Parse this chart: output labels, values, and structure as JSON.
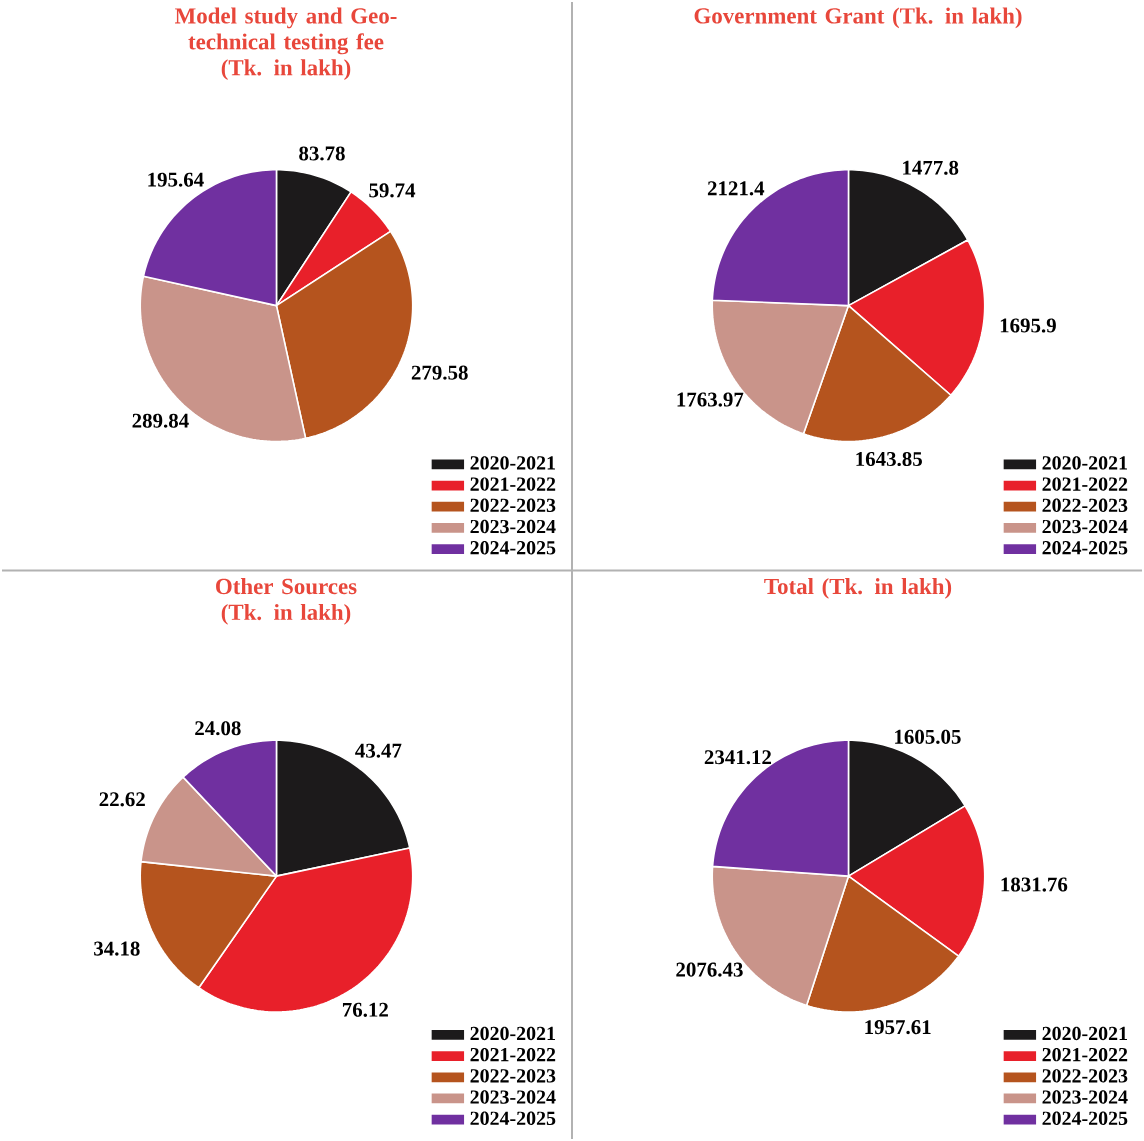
{
  "chart_data": [
    {
      "type": "pie",
      "title": "Model study and Geo-technical testing fee",
      "subtitle": "(Tk. in lakh)",
      "categories": [
        "2020-2021",
        "2021-2022",
        "2022-2023",
        "2023-2024",
        "2024-2025"
      ],
      "values": [
        83.78,
        59.74,
        279.58,
        289.84,
        195.64
      ],
      "colors": [
        "#1c1a1b",
        "#e8202a",
        "#b5541e",
        "#c9948a",
        "#7030a0"
      ],
      "data_labels": true,
      "legend": "bottom right"
    },
    {
      "type": "pie",
      "title": "Government Grant (Tk. in lakh)",
      "categories": [
        "2020-2021",
        "2021-2022",
        "2022-2023",
        "2023-2024",
        "2024-2025"
      ],
      "values": [
        1477.8,
        1695.9,
        1643.85,
        1763.97,
        2121.4
      ],
      "colors": [
        "#1c1a1b",
        "#e8202a",
        "#b5541e",
        "#c9948a",
        "#7030a0"
      ],
      "data_labels": true,
      "legend": "bottom right"
    },
    {
      "type": "pie",
      "title": "Other Sources",
      "subtitle": "(Tk. in lakh)",
      "categories": [
        "2020-2021",
        "2021-2022",
        "2022-2023",
        "2023-2024",
        "2024-2025"
      ],
      "values": [
        43.47,
        76.12,
        34.18,
        22.62,
        24.08
      ],
      "colors": [
        "#1c1a1b",
        "#e8202a",
        "#b5541e",
        "#c9948a",
        "#7030a0"
      ],
      "data_labels": true,
      "legend": "bottom right"
    },
    {
      "type": "pie",
      "title": "Total (Tk. in lakh)",
      "categories": [
        "2020-2021",
        "2021-2022",
        "2022-2023",
        "2023-2024",
        "2024-2025"
      ],
      "values": [
        1605.05,
        1831.76,
        1957.61,
        2076.43,
        2341.12
      ],
      "colors": [
        "#1c1a1b",
        "#e8202a",
        "#b5541e",
        "#c9948a",
        "#7030a0"
      ],
      "data_labels": true,
      "legend": "bottom right"
    }
  ]
}
